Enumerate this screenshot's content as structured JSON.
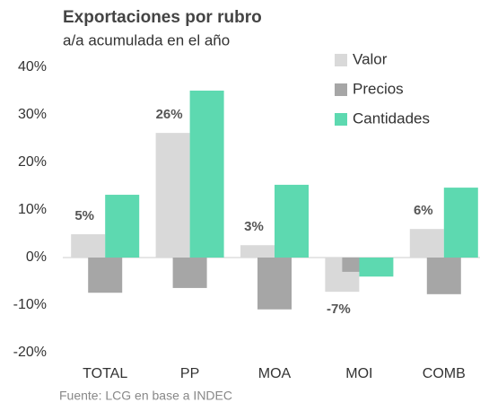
{
  "chart_data": {
    "type": "bar",
    "title": "Exportaciones por rubro",
    "subtitle": "a/a acumulada en el año",
    "source": "Fuente: LCG en base a INDEC",
    "categories": [
      "TOTAL",
      "PP",
      "MOA",
      "MOI",
      "COMB"
    ],
    "series": [
      {
        "name": "Valor",
        "color": "#d9d9d9",
        "values": [
          4.9,
          26.2,
          2.6,
          -7.2,
          6.0
        ],
        "value_labels": [
          "5%",
          "26%",
          "3%",
          "-7%",
          "6%"
        ]
      },
      {
        "name": "Precios",
        "color": "#a6a6a6",
        "values": [
          -7.4,
          -6.4,
          -10.9,
          -3.0,
          -7.7
        ]
      },
      {
        "name": "Cantidades",
        "color": "#5dd9b0",
        "values": [
          13.2,
          35.1,
          15.3,
          -4.0,
          14.7
        ]
      }
    ],
    "ylim": [
      -20,
      40
    ],
    "yticks": [
      {
        "value": -20,
        "label": "-20%"
      },
      {
        "value": -10,
        "label": "-10%"
      },
      {
        "value": 0,
        "label": "0%"
      },
      {
        "value": 10,
        "label": "10%"
      },
      {
        "value": 20,
        "label": "20%"
      },
      {
        "value": 30,
        "label": "30%"
      },
      {
        "value": 40,
        "label": "40%"
      }
    ],
    "grid": false,
    "legend": "top-right"
  }
}
